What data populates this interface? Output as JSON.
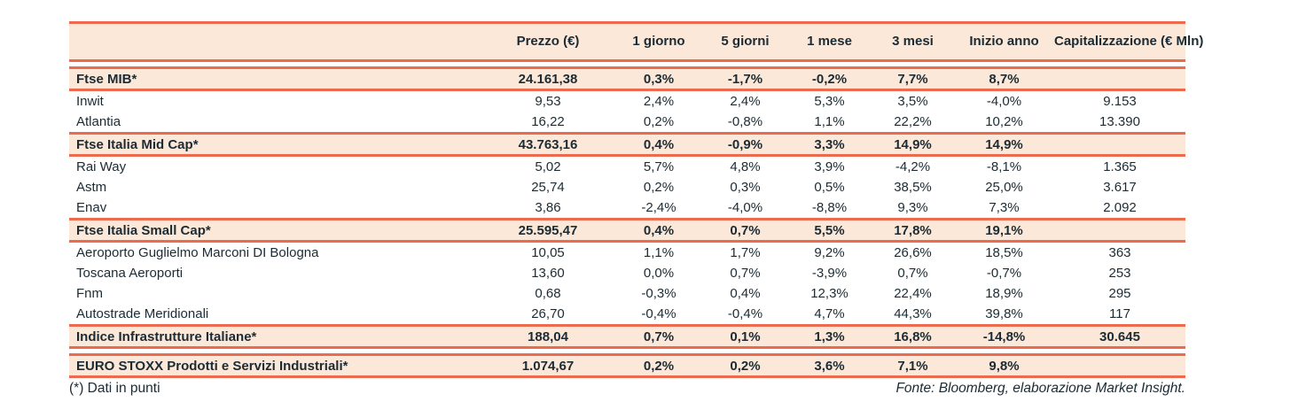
{
  "colors": {
    "accent_border": "#EC6A4E",
    "band_background": "#FBE8D9",
    "text": "#1C2B33"
  },
  "chart_data": {
    "type": "table",
    "columns": [
      "Prezzo\n(€)",
      "1 giorno",
      "5 giorni",
      "1 mese",
      "3 mesi",
      "Inizio anno",
      "Capitalizzazione\n(€ Mln)"
    ],
    "rows": [
      {
        "type": "index",
        "gap_before": true,
        "name": "Ftse MIB*",
        "values": [
          "24.161,38",
          "0,3%",
          "-1,7%",
          "-0,2%",
          "7,7%",
          "8,7%",
          ""
        ]
      },
      {
        "type": "stock",
        "gap_before": false,
        "name": "Inwit",
        "values": [
          "9,53",
          "2,4%",
          "2,4%",
          "5,3%",
          "3,5%",
          "-4,0%",
          "9.153"
        ]
      },
      {
        "type": "stock",
        "gap_before": false,
        "name": "Atlantia",
        "values": [
          "16,22",
          "0,2%",
          "-0,8%",
          "1,1%",
          "22,2%",
          "10,2%",
          "13.390"
        ]
      },
      {
        "type": "index",
        "gap_before": false,
        "name": "Ftse Italia Mid Cap*",
        "values": [
          "43.763,16",
          "0,4%",
          "-0,9%",
          "3,3%",
          "14,9%",
          "14,9%",
          ""
        ]
      },
      {
        "type": "stock",
        "gap_before": false,
        "name": "Rai Way",
        "values": [
          "5,02",
          "5,7%",
          "4,8%",
          "3,9%",
          "-4,2%",
          "-8,1%",
          "1.365"
        ]
      },
      {
        "type": "stock",
        "gap_before": false,
        "name": "Astm",
        "values": [
          "25,74",
          "0,2%",
          "0,3%",
          "0,5%",
          "38,5%",
          "25,0%",
          "3.617"
        ]
      },
      {
        "type": "stock",
        "gap_before": false,
        "name": "Enav",
        "values": [
          "3,86",
          "-2,4%",
          "-4,0%",
          "-8,8%",
          "9,3%",
          "7,3%",
          "2.092"
        ]
      },
      {
        "type": "index",
        "gap_before": false,
        "name": "Ftse Italia Small Cap*",
        "values": [
          "25.595,47",
          "0,4%",
          "0,7%",
          "5,5%",
          "17,8%",
          "19,1%",
          ""
        ]
      },
      {
        "type": "stock",
        "gap_before": false,
        "name": "Aeroporto Guglielmo Marconi DI Bologna",
        "values": [
          "10,05",
          "1,1%",
          "1,7%",
          "9,2%",
          "26,6%",
          "18,5%",
          "363"
        ]
      },
      {
        "type": "stock",
        "gap_before": false,
        "name": "Toscana Aeroporti",
        "values": [
          "13,60",
          "0,0%",
          "0,7%",
          "-3,9%",
          "0,7%",
          "-0,7%",
          "253"
        ]
      },
      {
        "type": "stock",
        "gap_before": false,
        "name": "Fnm",
        "values": [
          "0,68",
          "-0,3%",
          "0,4%",
          "12,3%",
          "22,4%",
          "18,9%",
          "295"
        ]
      },
      {
        "type": "stock",
        "gap_before": false,
        "name": "Autostrade Meridionali",
        "values": [
          "26,70",
          "-0,4%",
          "-0,4%",
          "4,7%",
          "44,3%",
          "39,8%",
          "117"
        ]
      },
      {
        "type": "index",
        "gap_before": false,
        "name": "Indice Infrastrutture Italiane*",
        "values": [
          "188,04",
          "0,7%",
          "0,1%",
          "1,3%",
          "16,8%",
          "-14,8%",
          "30.645"
        ]
      },
      {
        "type": "index",
        "gap_before": true,
        "name": "EURO STOXX Prodotti e Servizi Industriali*",
        "values": [
          "1.074,67",
          "0,2%",
          "0,2%",
          "3,6%",
          "7,1%",
          "9,8%",
          ""
        ]
      }
    ]
  },
  "footer": {
    "left": "(*) Dati in punti",
    "right": "Fonte: Bloomberg, elaborazione Market Insight."
  }
}
